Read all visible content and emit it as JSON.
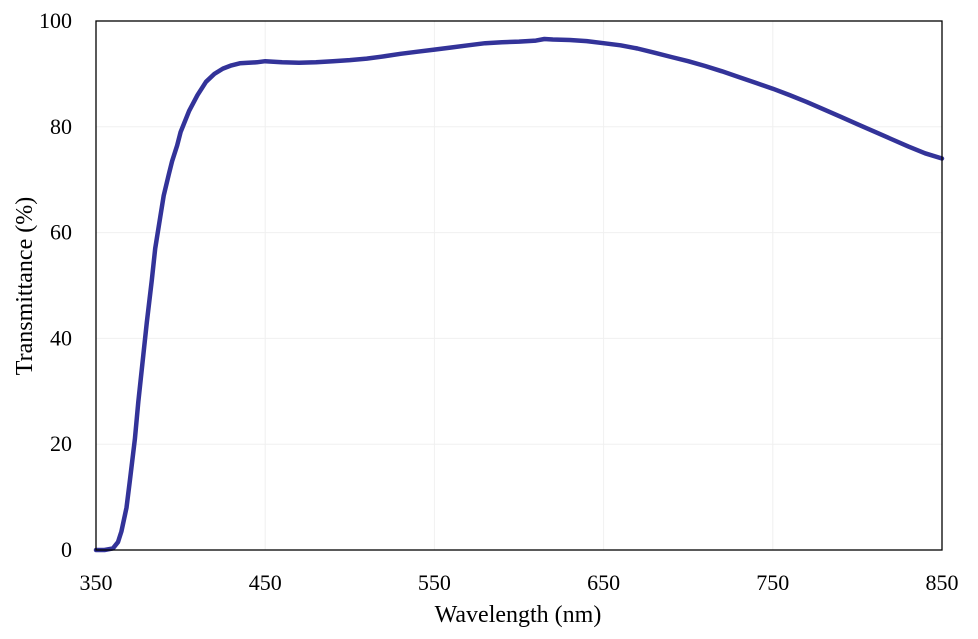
{
  "chart_data": {
    "type": "line",
    "title": "",
    "xlabel": "Wavelength (nm)",
    "ylabel": "Transmittance (%)",
    "xlim": [
      350,
      850
    ],
    "ylim": [
      0,
      100
    ],
    "x_ticks": [
      350,
      450,
      550,
      650,
      750,
      850
    ],
    "y_ticks": [
      0,
      20,
      40,
      60,
      80,
      100
    ],
    "grid": true,
    "line_color": "#333399",
    "series": [
      {
        "name": "",
        "x": [
          350,
          355,
          360,
          363,
          365,
          368,
          370,
          373,
          375,
          378,
          380,
          383,
          385,
          388,
          390,
          393,
          395,
          398,
          400,
          405,
          410,
          415,
          420,
          425,
          430,
          435,
          440,
          445,
          450,
          460,
          470,
          480,
          490,
          500,
          510,
          520,
          530,
          540,
          550,
          560,
          570,
          580,
          590,
          600,
          610,
          615,
          620,
          630,
          640,
          650,
          660,
          670,
          680,
          690,
          700,
          710,
          720,
          730,
          740,
          750,
          760,
          770,
          780,
          790,
          800,
          810,
          820,
          830,
          840,
          850
        ],
        "y": [
          0,
          0,
          0.3,
          1.5,
          3.5,
          8,
          13,
          21,
          28,
          37,
          43,
          51,
          57,
          63,
          67,
          71,
          73.5,
          76.5,
          79,
          83,
          86,
          88.5,
          90,
          91,
          91.6,
          92,
          92.1,
          92.2,
          92.4,
          92.2,
          92.1,
          92.2,
          92.4,
          92.6,
          92.9,
          93.3,
          93.8,
          94.2,
          94.6,
          95,
          95.4,
          95.8,
          96,
          96.1,
          96.3,
          96.6,
          96.5,
          96.4,
          96.2,
          95.8,
          95.4,
          94.8,
          94,
          93.2,
          92.4,
          91.5,
          90.5,
          89.4,
          88.3,
          87.2,
          86,
          84.7,
          83.3,
          81.9,
          80.5,
          79.1,
          77.7,
          76.3,
          75,
          74
        ]
      }
    ]
  }
}
